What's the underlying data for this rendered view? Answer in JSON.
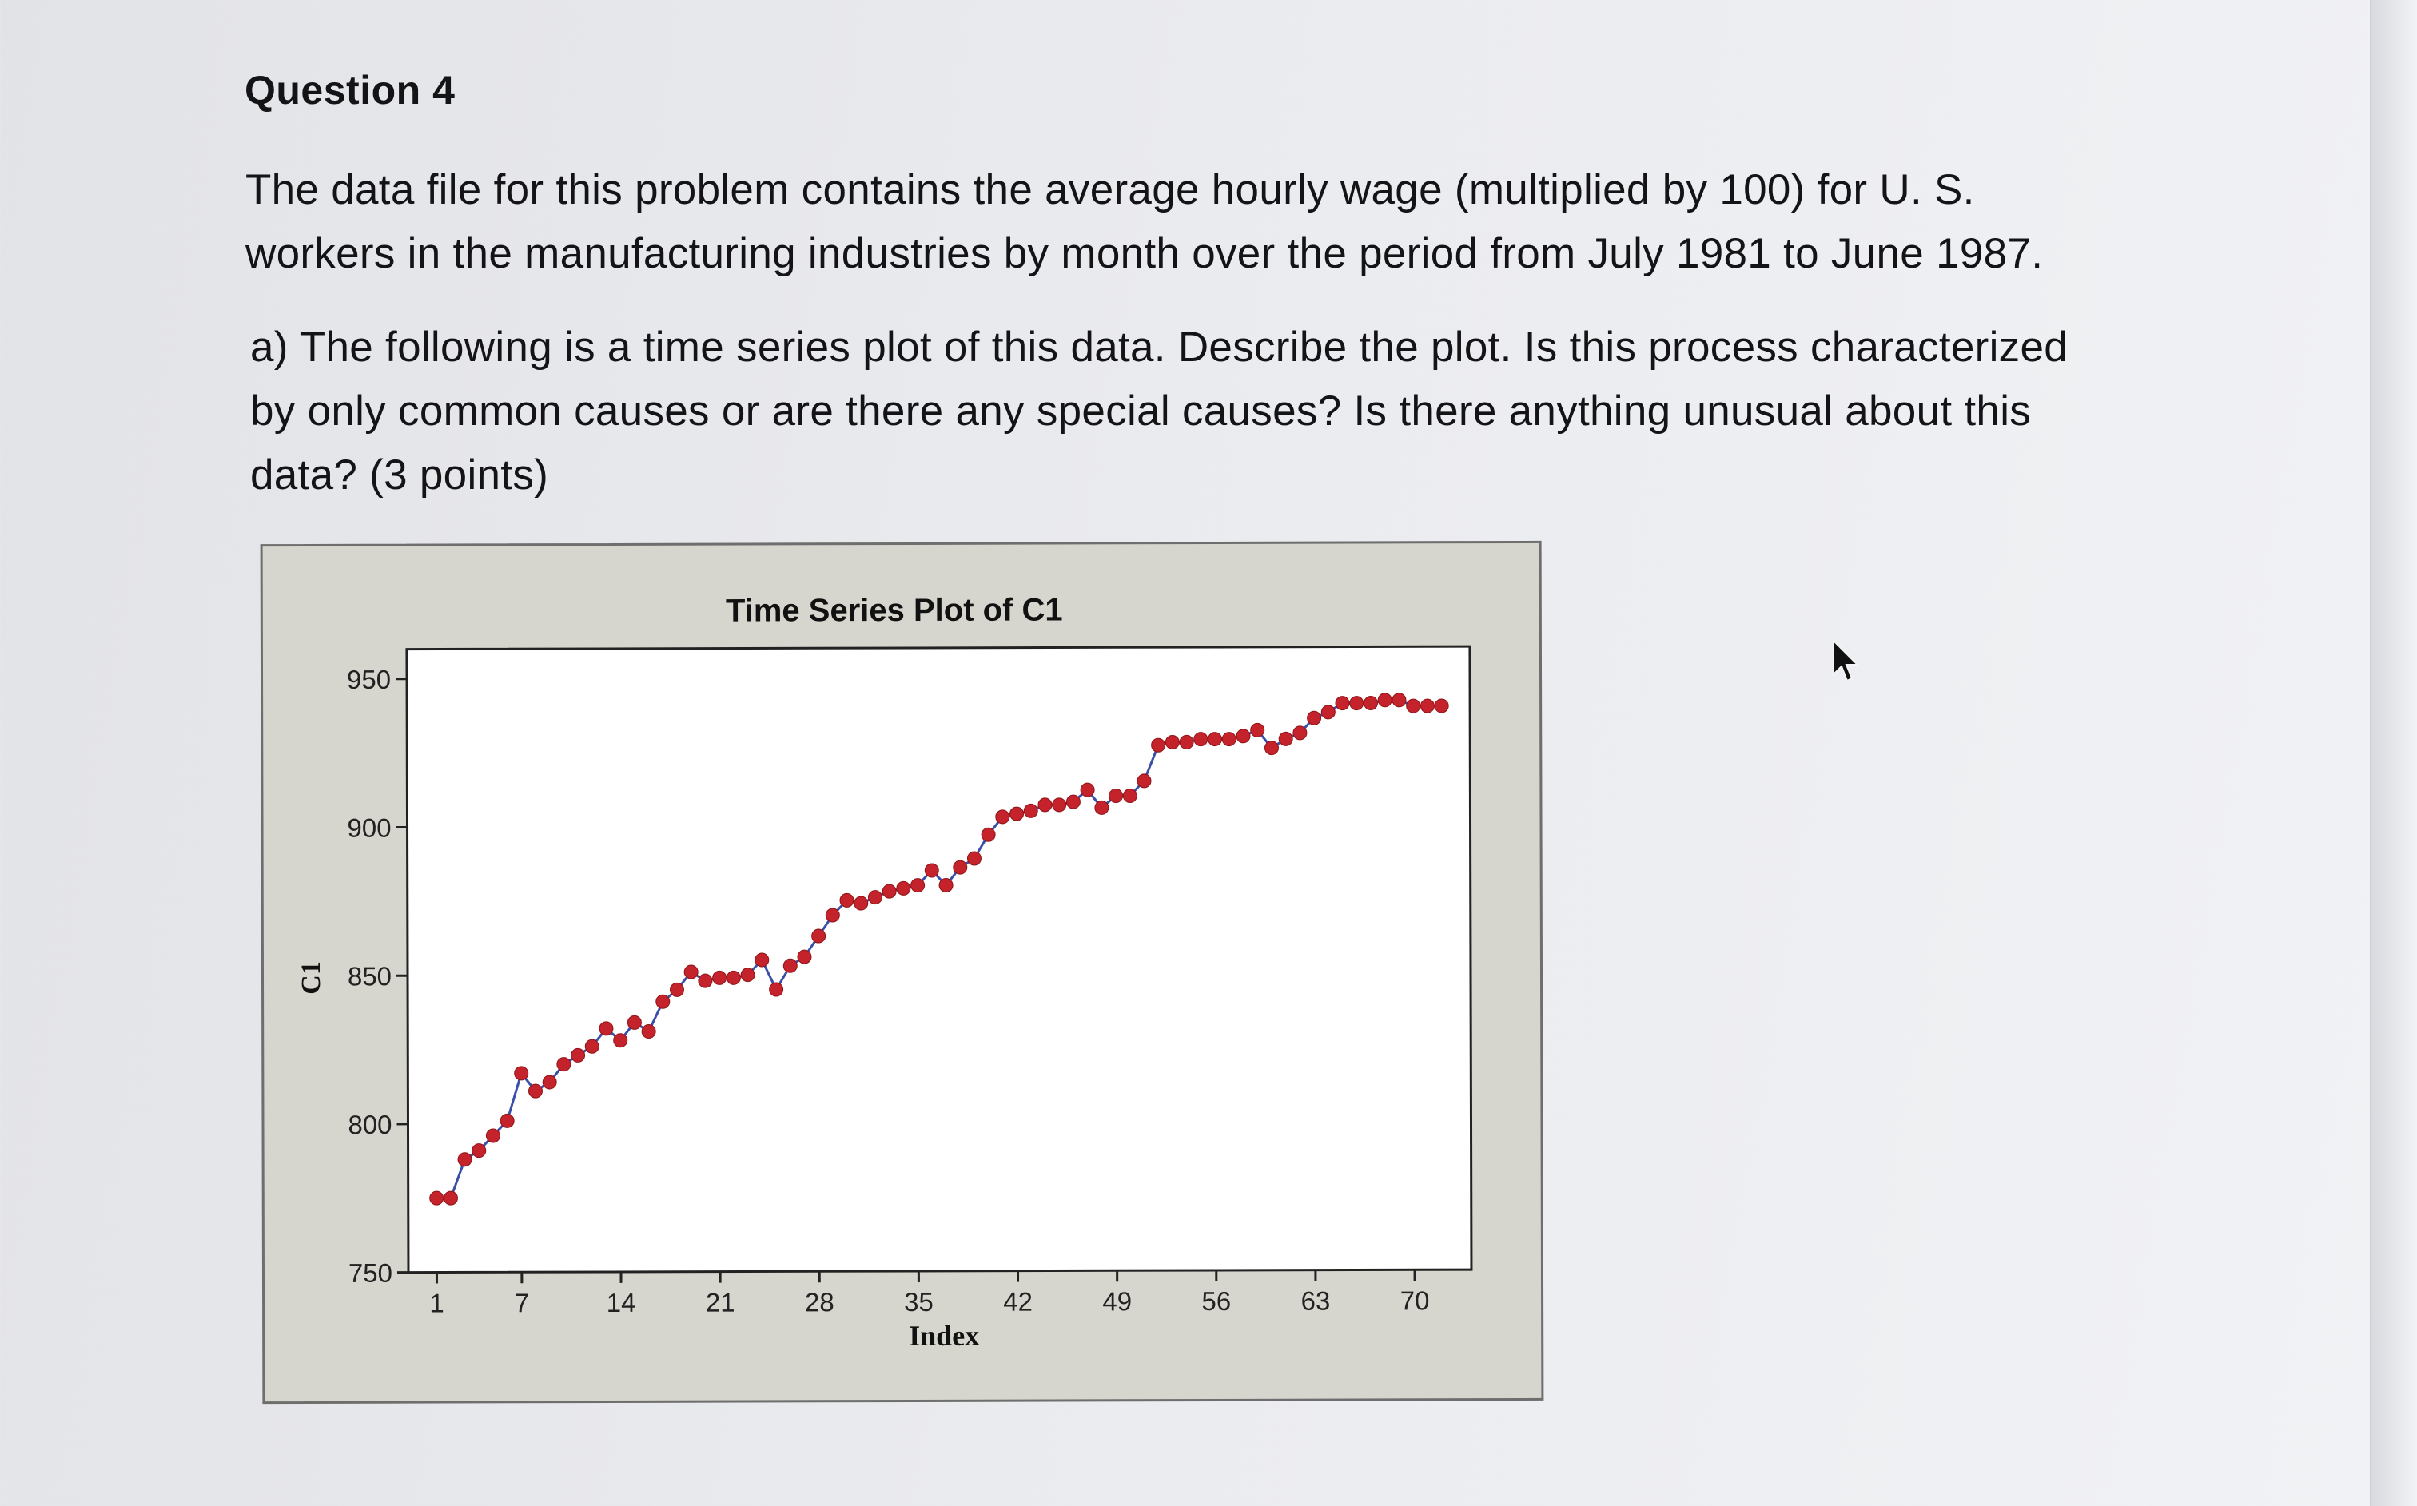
{
  "question": {
    "title": "Question 4",
    "paragraph1": [
      "The data file for this problem contains the average hourly wage (multiplied by 100) for U. S.",
      "workers in the manufacturing industries by month over the period from July 1981 to June 1987."
    ],
    "paragraph2": [
      "a) The following is a time series plot of this data. Describe the plot. Is this process characterized",
      "by only common causes or are there any special causes? Is there anything unusual about this",
      "data? (3 points)"
    ]
  },
  "colors": {
    "series_line": "#3b4fa8",
    "series_marker": "#c4232b",
    "plot_background": "#ffffff",
    "frame_background": "#d7d6ce"
  },
  "chart_data": {
    "type": "line",
    "title": "Time Series Plot of C1",
    "xlabel": "Index",
    "ylabel": "C1",
    "xlim": [
      -1,
      74
    ],
    "ylim": [
      750,
      960
    ],
    "xticks": [
      1,
      7,
      14,
      21,
      28,
      35,
      42,
      49,
      56,
      63,
      70
    ],
    "yticks": [
      750,
      800,
      850,
      900,
      950
    ],
    "grid": false,
    "legend": "none",
    "series": [
      {
        "x": [
          1,
          2,
          3,
          4,
          5,
          6,
          7,
          8,
          9,
          10,
          11,
          12,
          13,
          14,
          15,
          16,
          17,
          18,
          19,
          20,
          21,
          22,
          23,
          24,
          25,
          26,
          27,
          28,
          29,
          30,
          31,
          32,
          33,
          34,
          35,
          36,
          37,
          38,
          39,
          40,
          41,
          42,
          43,
          44,
          45,
          46,
          47,
          48,
          49,
          50,
          51,
          52,
          53,
          54,
          55,
          56,
          57,
          58,
          59,
          60,
          61,
          62,
          63,
          64,
          65,
          66,
          67,
          68,
          69,
          70,
          71,
          72
        ],
        "values": [
          775,
          775,
          788,
          791,
          796,
          801,
          817,
          811,
          814,
          820,
          823,
          826,
          832,
          828,
          834,
          831,
          841,
          845,
          851,
          848,
          849,
          849,
          850,
          855,
          845,
          853,
          856,
          863,
          870,
          875,
          874,
          876,
          878,
          879,
          880,
          885,
          880,
          886,
          889,
          897,
          903,
          904,
          905,
          907,
          907,
          908,
          912,
          906,
          910,
          910,
          915,
          927,
          928,
          928,
          929,
          929,
          929,
          930,
          932,
          926,
          929,
          931,
          936,
          938,
          941,
          941,
          941,
          942,
          942,
          940,
          940,
          940
        ]
      }
    ]
  }
}
